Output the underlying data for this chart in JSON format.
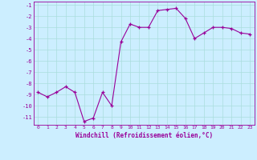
{
  "x": [
    0,
    1,
    2,
    3,
    4,
    5,
    6,
    7,
    8,
    9,
    10,
    11,
    12,
    13,
    14,
    15,
    16,
    17,
    18,
    19,
    20,
    21,
    22,
    23
  ],
  "y": [
    -8.8,
    -9.2,
    -8.8,
    -8.3,
    -8.8,
    -11.4,
    -11.1,
    -8.8,
    -10.0,
    -4.3,
    -2.7,
    -3.0,
    -3.0,
    -1.5,
    -1.4,
    -1.3,
    -2.2,
    -4.0,
    -3.5,
    -3.0,
    -3.0,
    -3.1,
    -3.5,
    -3.6
  ],
  "xlabel": "Windchill (Refroidissement éolien,°C)",
  "ylim": [
    -11.7,
    -0.7
  ],
  "xlim": [
    -0.5,
    23.5
  ],
  "yticks": [
    -11,
    -10,
    -9,
    -8,
    -7,
    -6,
    -5,
    -4,
    -3,
    -2,
    -1
  ],
  "xticks": [
    0,
    1,
    2,
    3,
    4,
    5,
    6,
    7,
    8,
    9,
    10,
    11,
    12,
    13,
    14,
    15,
    16,
    17,
    18,
    19,
    20,
    21,
    22,
    23
  ],
  "line_color": "#990099",
  "marker": "+",
  "bg_color": "#cceeff",
  "grid_color": "#aadddd",
  "font_color": "#990099"
}
